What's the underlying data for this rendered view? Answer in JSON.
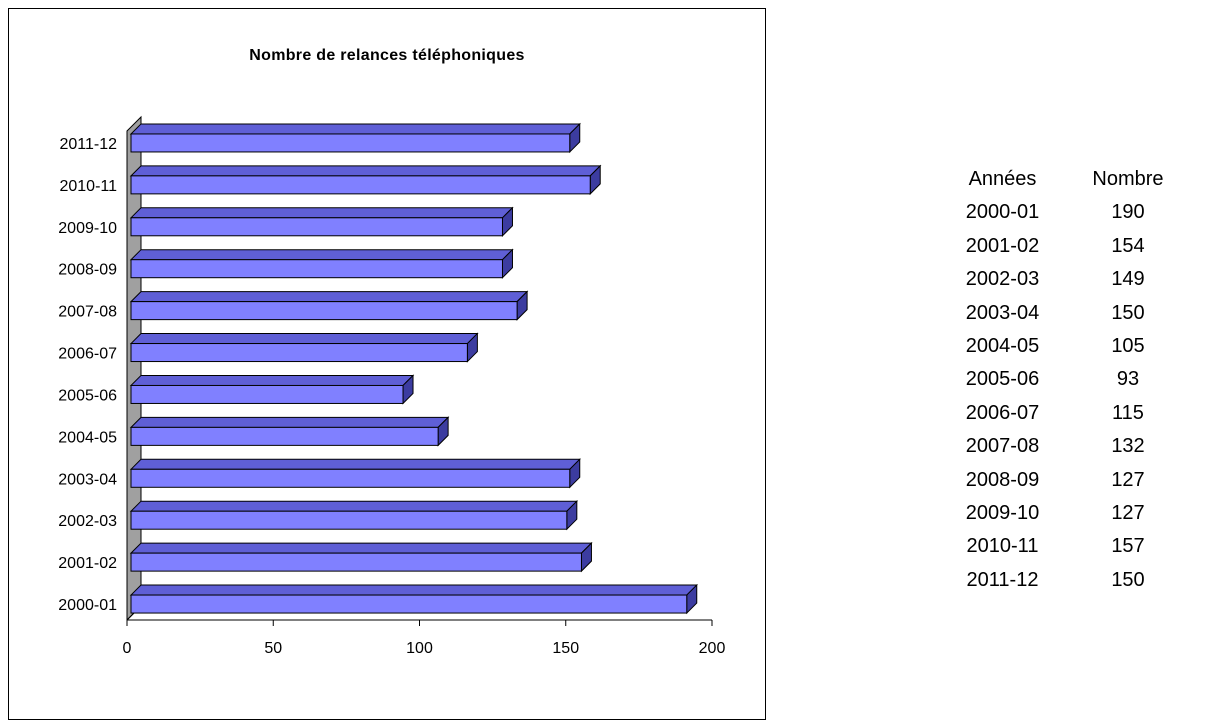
{
  "colors": {
    "bar_face": "#8080FF",
    "bar_top": "#5F5FD6",
    "bar_side": "#3C3CA0",
    "wall": "#A0A0A0"
  },
  "chart_data": {
    "type": "bar",
    "orientation": "horizontal",
    "style": "3d",
    "title": "Nombre de relances téléphoniques",
    "categories": [
      "2000-01",
      "2001-02",
      "2002-03",
      "2003-04",
      "2004-05",
      "2005-06",
      "2006-07",
      "2007-08",
      "2008-09",
      "2009-10",
      "2010-11",
      "2011-12"
    ],
    "values": [
      190,
      154,
      149,
      150,
      105,
      93,
      115,
      132,
      127,
      127,
      157,
      150
    ],
    "xlim": [
      0,
      200
    ],
    "xticks": [
      "0",
      "50",
      "100",
      "150",
      "200"
    ],
    "grid": false,
    "legend": "none"
  },
  "table": {
    "headers": [
      "Années",
      "Nombre"
    ],
    "rows": [
      [
        "2000-01",
        "190"
      ],
      [
        "2001-02",
        "154"
      ],
      [
        "2002-03",
        "149"
      ],
      [
        "2003-04",
        "150"
      ],
      [
        "2004-05",
        "105"
      ],
      [
        "2005-06",
        "93"
      ],
      [
        "2006-07",
        "115"
      ],
      [
        "2007-08",
        "132"
      ],
      [
        "2008-09",
        "127"
      ],
      [
        "2009-10",
        "127"
      ],
      [
        "2010-11",
        "157"
      ],
      [
        "2011-12",
        "150"
      ]
    ]
  }
}
